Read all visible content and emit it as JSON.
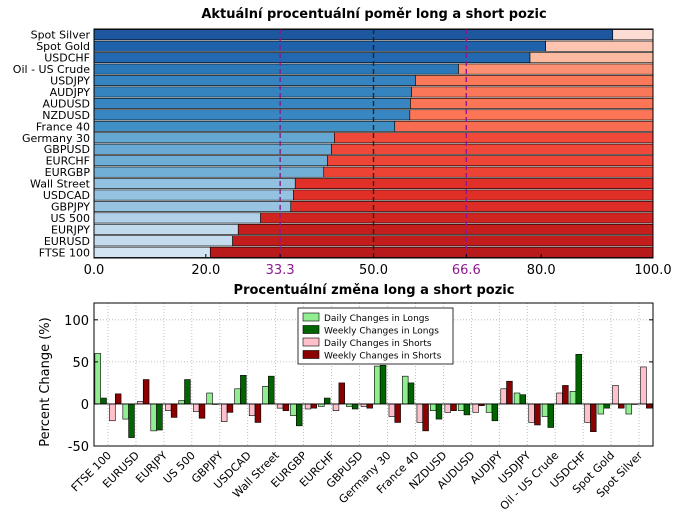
{
  "chart_data": [
    {
      "type": "bar",
      "orientation": "horizontal",
      "stacked": true,
      "title": "Aktuální procentuální poměr long a short pozic",
      "xlim": [
        0,
        100
      ],
      "xticks": [
        "0.0",
        "20.0",
        "33.3",
        "50.0",
        "66.6",
        "80.0",
        "100.0"
      ],
      "xtick_values": [
        0,
        20,
        33.3,
        50,
        66.6,
        80,
        100
      ],
      "highlight_ticks": [
        33.3,
        66.6
      ],
      "reference_lines": [
        {
          "value": 33.3,
          "color": "#8b1a8b",
          "style": "dashed"
        },
        {
          "value": 50.0,
          "color": "#222222",
          "style": "dashed"
        },
        {
          "value": 66.6,
          "color": "#8b1a8b",
          "style": "dashed"
        }
      ],
      "categories": [
        "Spot Silver",
        "Spot Gold",
        "USDCHF",
        "Oil - US Crude",
        "USDJPY",
        "AUDJPY",
        "AUDUSD",
        "NZDUSD",
        "France 40",
        "Germany 30",
        "GBPUSD",
        "EURCHF",
        "EURGBP",
        "Wall Street",
        "USDCAD",
        "GBPJPY",
        "US 500",
        "EURJPY",
        "EURUSD",
        "FTSE 100"
      ],
      "long_values": [
        92.8,
        80.8,
        78.0,
        65.2,
        57.5,
        56.8,
        56.6,
        56.5,
        53.8,
        43.0,
        42.5,
        41.8,
        41.1,
        36.0,
        35.7,
        35.2,
        29.8,
        25.8,
        24.8,
        20.8
      ],
      "long_colors": [
        "#1c57a0",
        "#1f62ac",
        "#2369b2",
        "#2b78b8",
        "#3583c0",
        "#3584c0",
        "#3786c1",
        "#3887c2",
        "#4090c5",
        "#64a7d3",
        "#69aad5",
        "#6eadd6",
        "#72afd7",
        "#93c1e0",
        "#95c2e0",
        "#98c4e1",
        "#b1d1e8",
        "#c1daec",
        "#c4dcee",
        "#d2e4f1"
      ],
      "short_colors": [
        "#fcdcd3",
        "#fcc4b1",
        "#fcbaa2",
        "#fb8f71",
        "#fb7859",
        "#fb7759",
        "#fb7657",
        "#fb7556",
        "#f86d52",
        "#f0493a",
        "#ef4739",
        "#ee4537",
        "#ed4335",
        "#e03028",
        "#df2f27",
        "#de2d26",
        "#d02420",
        "#c51e1c",
        "#c21d1c",
        "#b81a1b"
      ]
    },
    {
      "type": "bar",
      "title": "Procentuální změna long a short pozic",
      "ylabel": "Percent Change (%)",
      "ylim": [
        -50,
        120
      ],
      "yticks": [
        -50,
        0,
        50,
        100
      ],
      "grid": true,
      "legend_position": "top-center",
      "categories": [
        "FTSE 100",
        "EURUSD",
        "EURJPY",
        "US 500",
        "GBPJPY",
        "USDCAD",
        "Wall Street",
        "EURGBP",
        "EURCHF",
        "GBPUSD",
        "Germany 30",
        "France 40",
        "NZDUSD",
        "AUDUSD",
        "AUDJPY",
        "USDJPY",
        "Oil - US Crude",
        "USDCHF",
        "Spot Gold",
        "Spot Silver"
      ],
      "series": [
        {
          "name": "Daily Changes in Longs",
          "color": "#90ee90",
          "values": [
            60,
            -18,
            -32,
            4,
            13,
            18,
            21,
            -14,
            -3,
            -3,
            45,
            33,
            -8,
            -8,
            -10,
            13,
            -15,
            15,
            -12,
            -12
          ]
        },
        {
          "name": "Weekly Changes in Longs",
          "color": "#006400",
          "values": [
            7,
            -40,
            -31,
            29,
            0,
            34,
            33,
            -26,
            7,
            -6,
            46,
            25,
            -18,
            -13,
            -20,
            11,
            -28,
            59,
            -5,
            0
          ]
        },
        {
          "name": "Daily Changes in Shorts",
          "color": "#ffc0cb",
          "values": [
            -20,
            3,
            -8,
            -9,
            -21,
            -14,
            -5,
            -6,
            -8,
            -3,
            -15,
            -22,
            -10,
            -10,
            18,
            -22,
            13,
            -22,
            22,
            44
          ]
        },
        {
          "name": "Weekly Changes in Shorts",
          "color": "#8b0000",
          "values": [
            12,
            29,
            -16,
            -17,
            -10,
            -22,
            -8,
            -5,
            25,
            -5,
            -22,
            -32,
            -8,
            -2,
            27,
            -25,
            22,
            -33,
            -5,
            -5
          ]
        }
      ]
    }
  ]
}
